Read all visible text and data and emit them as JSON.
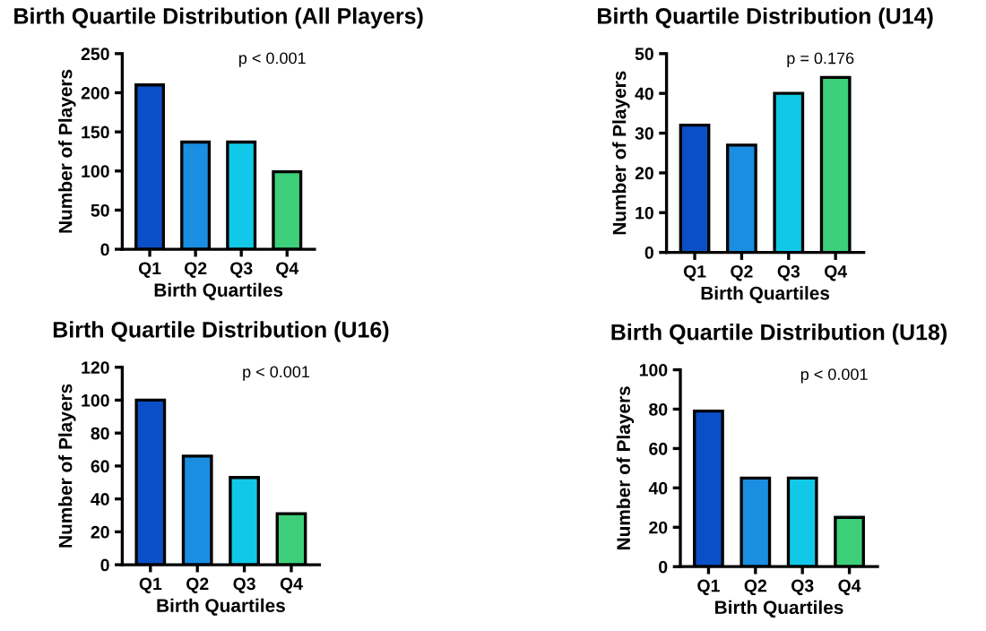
{
  "chart_data": [
    {
      "type": "bar",
      "title": "Birth Quartile Distribution (All Players)",
      "xlabel": "Birth Quartiles",
      "ylabel": "Number of Players",
      "categories": [
        "Q1",
        "Q2",
        "Q3",
        "Q4"
      ],
      "values": [
        210,
        137,
        137,
        99
      ],
      "colors": [
        "#0b4fc8",
        "#1a8ee0",
        "#12c8e8",
        "#3ecf7a"
      ],
      "ylim": [
        0,
        250
      ],
      "yticks": [
        0,
        50,
        100,
        150,
        200,
        250
      ],
      "annotations": [
        "p < 0.001"
      ]
    },
    {
      "type": "bar",
      "title": "Birth Quartile Distribution (U14)",
      "xlabel": "Birth Quartiles",
      "ylabel": "Number of Players",
      "categories": [
        "Q1",
        "Q2",
        "Q3",
        "Q4"
      ],
      "values": [
        32,
        27,
        40,
        44
      ],
      "colors": [
        "#0b4fc8",
        "#1a8ee0",
        "#12c8e8",
        "#3ecf7a"
      ],
      "ylim": [
        0,
        50
      ],
      "yticks": [
        0,
        10,
        20,
        30,
        40,
        50
      ],
      "annotations": [
        "p = 0.176"
      ]
    },
    {
      "type": "bar",
      "title": "Birth Quartile Distribution (U16)",
      "xlabel": "Birth Quartiles",
      "ylabel": "Number of Players",
      "categories": [
        "Q1",
        "Q2",
        "Q3",
        "Q4"
      ],
      "values": [
        100,
        66,
        53,
        31
      ],
      "colors": [
        "#0b4fc8",
        "#1a8ee0",
        "#12c8e8",
        "#3ecf7a"
      ],
      "ylim": [
        0,
        120
      ],
      "yticks": [
        0,
        20,
        40,
        60,
        80,
        100,
        120
      ],
      "annotations": [
        "p < 0.001"
      ]
    },
    {
      "type": "bar",
      "title": "Birth Quartile Distribution (U18)",
      "xlabel": "Birth Quartiles",
      "ylabel": "Number of Players",
      "categories": [
        "Q1",
        "Q2",
        "Q3",
        "Q4"
      ],
      "values": [
        79,
        45,
        45,
        25
      ],
      "colors": [
        "#0b4fc8",
        "#1a8ee0",
        "#12c8e8",
        "#3ecf7a"
      ],
      "ylim": [
        0,
        100
      ],
      "yticks": [
        0,
        20,
        40,
        60,
        80,
        100
      ],
      "annotations": [
        "p < 0.001"
      ]
    }
  ]
}
